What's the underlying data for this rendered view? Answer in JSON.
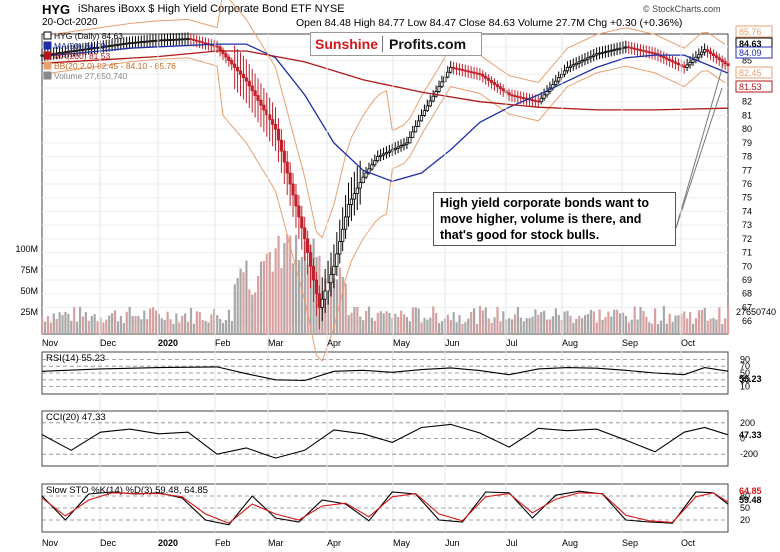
{
  "header": {
    "ticker": "HYG",
    "title": "iShares iBoxx $ High Yield Corporate Bond ETF  NYSE",
    "date": "20-Oct-2020",
    "quote": "Open 84.48  High 84.77  Low 84.47  Close 84.63  Volume 27.7M  Chg +0.30 (+0.36%)",
    "brand": "© StockCharts.com"
  },
  "logo": {
    "part1": "Sunshine",
    "part2": "Profits.com"
  },
  "annotation": "High yield corporate bonds want to move higher, volume is there, and that's good for stock bulls.",
  "colors": {
    "ma50": "#1f2fa8",
    "ma200": "#b01818",
    "bb": "#e8a070",
    "up": "#000000",
    "down": "#c0202a",
    "rsi_fill": "#7a3a3a",
    "cci_up": "#5a7a4a"
  },
  "chart_data": [
    {
      "type": "line",
      "title": "HYG (Daily) 84.63",
      "legend": [
        {
          "label": "HYG (Daily) 84.63",
          "color": "#000000"
        },
        {
          "label": "MA(50) 84.09",
          "color": "#1f2fa8"
        },
        {
          "label": "MA(200) 81.53",
          "color": "#b01818"
        },
        {
          "label": "BB(20,2.0) 82.45 - 84.10 - 85.76",
          "color": "#e8a070"
        },
        {
          "label": "Volume 27,650,740",
          "color": "#888888"
        }
      ],
      "x_labels": [
        "Nov",
        "Dec",
        "2020",
        "Feb",
        "Mar",
        "Apr",
        "May",
        "Jun",
        "Jul",
        "Aug",
        "Sep",
        "Oct"
      ],
      "y_ticks": [
        66,
        67,
        68,
        69,
        70,
        71,
        72,
        73,
        74,
        75,
        76,
        77,
        78,
        79,
        80,
        81,
        82,
        83,
        84,
        85,
        86
      ],
      "ylim": [
        65.5,
        86.5
      ],
      "price_labels": [
        "85.76",
        "84.63",
        "84.09",
        "82.45",
        "81.53"
      ],
      "volume_ticks": [
        "100M",
        "75M",
        "50M",
        "25M"
      ],
      "volume_last": "27650740",
      "series": [
        {
          "name": "HYG",
          "x": [
            0,
            10,
            20,
            30,
            40,
            50,
            60,
            70,
            80,
            90,
            95,
            100,
            105,
            110,
            115,
            120,
            125,
            130,
            140,
            150,
            160,
            170,
            180,
            190,
            200,
            210,
            220,
            227,
            235
          ],
          "y": [
            85.4,
            85.7,
            86.0,
            86.3,
            86.5,
            86.6,
            86.0,
            83.5,
            80.0,
            72.0,
            67.0,
            70.0,
            74.5,
            76.5,
            78.0,
            78.5,
            79.0,
            81.0,
            84.5,
            84.0,
            82.5,
            82.0,
            84.5,
            85.5,
            86.0,
            85.5,
            84.5,
            85.8,
            84.63
          ]
        },
        {
          "name": "MA(50)",
          "x": [
            0,
            30,
            60,
            70,
            80,
            90,
            100,
            110,
            120,
            130,
            140,
            150,
            160,
            170,
            180,
            190,
            200,
            210,
            220,
            235
          ],
          "y": [
            85.3,
            85.9,
            86.2,
            86.2,
            85.2,
            82.5,
            79.0,
            77.0,
            76.2,
            76.8,
            78.5,
            80.5,
            81.6,
            82.5,
            83.5,
            84.5,
            85.2,
            85.4,
            85.4,
            84.09
          ]
        },
        {
          "name": "MA(200)",
          "x": [
            0,
            40,
            60,
            70,
            90,
            110,
            130,
            150,
            170,
            190,
            210,
            235
          ],
          "y": [
            84.8,
            85.3,
            85.7,
            85.7,
            84.9,
            83.6,
            82.7,
            82.0,
            81.6,
            81.4,
            81.4,
            81.53
          ]
        }
      ]
    },
    {
      "type": "line",
      "title": "RSI(14) 55.23",
      "ylim": [
        0,
        100
      ],
      "y_ticks": [
        90,
        70,
        50,
        30,
        10
      ],
      "last": "55.23",
      "series": [
        {
          "name": "RSI",
          "x": [
            0,
            20,
            40,
            60,
            70,
            80,
            90,
            100,
            110,
            120,
            130,
            140,
            150,
            160,
            170,
            180,
            190,
            200,
            210,
            220,
            227,
            235
          ],
          "y": [
            55,
            62,
            66,
            68,
            48,
            30,
            28,
            55,
            58,
            52,
            60,
            65,
            57,
            45,
            62,
            66,
            64,
            58,
            50,
            45,
            66,
            55.23
          ]
        }
      ]
    },
    {
      "type": "line",
      "title": "CCI(20) 47.33",
      "ylim": [
        -300,
        300
      ],
      "y_ticks": [
        200,
        0,
        -200
      ],
      "last": "47.33",
      "series": [
        {
          "name": "CCI",
          "x": [
            0,
            10,
            20,
            30,
            40,
            50,
            60,
            70,
            80,
            90,
            100,
            110,
            120,
            130,
            140,
            150,
            160,
            170,
            180,
            190,
            200,
            210,
            220,
            227,
            235
          ],
          "y": [
            50,
            -150,
            80,
            120,
            60,
            80,
            -200,
            -120,
            -250,
            -150,
            110,
            60,
            -50,
            140,
            180,
            70,
            -110,
            130,
            100,
            120,
            -20,
            -170,
            80,
            140,
            47.33
          ]
        }
      ]
    },
    {
      "type": "line",
      "title": "Slow STO %K(14) %D(3) 59.48, 64.85",
      "ylim": [
        0,
        100
      ],
      "y_ticks": [
        80,
        50,
        20
      ],
      "last_k": "59.48",
      "last_d": "64.85",
      "series": [
        {
          "name": "%K",
          "x": [
            0,
            8,
            16,
            24,
            32,
            40,
            48,
            56,
            64,
            72,
            80,
            88,
            96,
            104,
            112,
            120,
            128,
            136,
            144,
            152,
            160,
            168,
            176,
            184,
            192,
            200,
            208,
            216,
            224,
            230,
            235
          ],
          "y": [
            80,
            20,
            85,
            90,
            85,
            88,
            75,
            20,
            8,
            80,
            25,
            15,
            70,
            60,
            18,
            90,
            85,
            20,
            15,
            90,
            88,
            25,
            82,
            92,
            85,
            20,
            15,
            12,
            90,
            88,
            59.48
          ]
        },
        {
          "name": "%D",
          "x": [
            0,
            8,
            16,
            24,
            32,
            40,
            48,
            56,
            64,
            72,
            80,
            88,
            96,
            104,
            112,
            120,
            128,
            136,
            144,
            152,
            160,
            168,
            176,
            184,
            192,
            200,
            208,
            216,
            224,
            230,
            235
          ],
          "y": [
            75,
            30,
            70,
            88,
            86,
            86,
            78,
            35,
            12,
            60,
            35,
            20,
            55,
            62,
            28,
            78,
            86,
            35,
            18,
            78,
            86,
            38,
            72,
            88,
            86,
            32,
            18,
            14,
            78,
            88,
            64.85
          ]
        }
      ]
    }
  ]
}
